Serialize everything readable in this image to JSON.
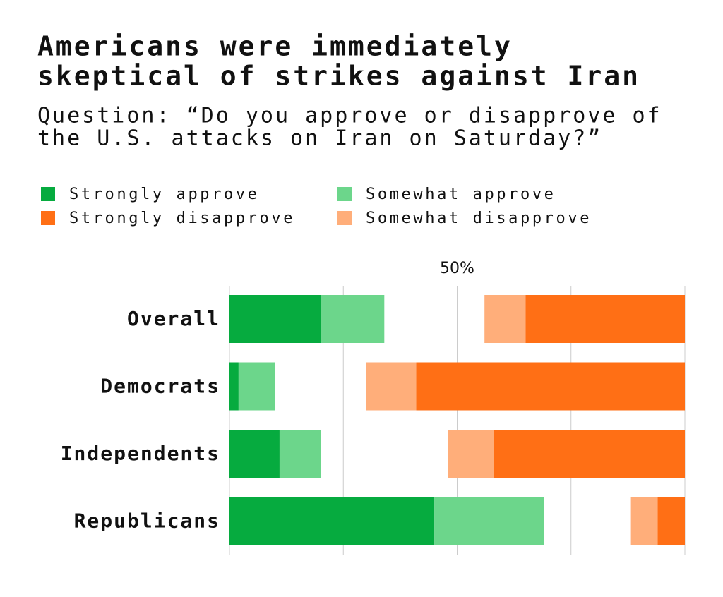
{
  "chart_data": {
    "type": "diverging_bar",
    "title": [
      "Americans were immediately",
      "skeptical of strikes against Iran"
    ],
    "subtitle": [
      "Question: “Do you approve or disapprove of",
      "the U.S. attacks on Iran on Saturday?”"
    ],
    "categories": [
      "Overall",
      "Democrats",
      "Independents",
      "Republicans"
    ],
    "series": [
      {
        "name": "Strongly approve",
        "color": "#06ab3f",
        "side": "left",
        "values": [
          20,
          2,
          11,
          45
        ]
      },
      {
        "name": "Somewhat approve",
        "color": "#6cd68b",
        "side": "left",
        "values": [
          14,
          8,
          9,
          24
        ]
      },
      {
        "name": "Strongly disapprove",
        "color": "#ff6f15",
        "side": "right",
        "values": [
          35,
          59,
          42,
          6
        ]
      },
      {
        "name": "Somewhat disapprove",
        "color": "#ffae7a",
        "side": "right",
        "values": [
          9,
          11,
          10,
          6
        ]
      }
    ],
    "xlim": [
      0,
      100
    ],
    "xticks": [
      {
        "value": 0,
        "label": null
      },
      {
        "value": 25,
        "label": null
      },
      {
        "value": 50,
        "label": "50%"
      },
      {
        "value": 75,
        "label": null
      },
      {
        "value": 100,
        "label": null
      }
    ],
    "grid": true
  }
}
